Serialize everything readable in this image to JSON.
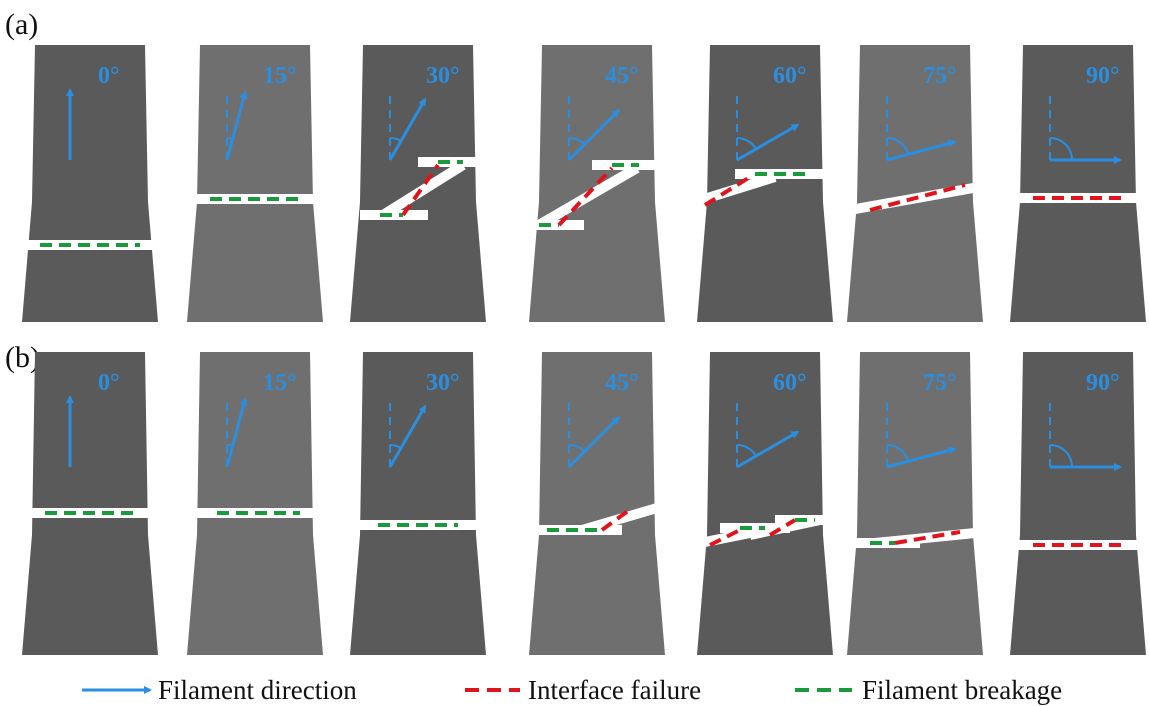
{
  "panels": [
    {
      "label": "(a)",
      "specimens": [
        {
          "angle": "0°"
        },
        {
          "angle": "15°"
        },
        {
          "angle": "30°"
        },
        {
          "angle": "45°"
        },
        {
          "angle": "60°"
        },
        {
          "angle": "75°"
        },
        {
          "angle": "90°"
        }
      ]
    },
    {
      "label": "(b)",
      "specimens": [
        {
          "angle": "0°"
        },
        {
          "angle": "15°"
        },
        {
          "angle": "30°"
        },
        {
          "angle": "45°"
        },
        {
          "angle": "60°"
        },
        {
          "angle": "75°"
        },
        {
          "angle": "90°"
        }
      ]
    }
  ],
  "legend": [
    {
      "label": "Filament direction"
    },
    {
      "label": "Interface failure"
    },
    {
      "label": "Filament breakage"
    }
  ]
}
